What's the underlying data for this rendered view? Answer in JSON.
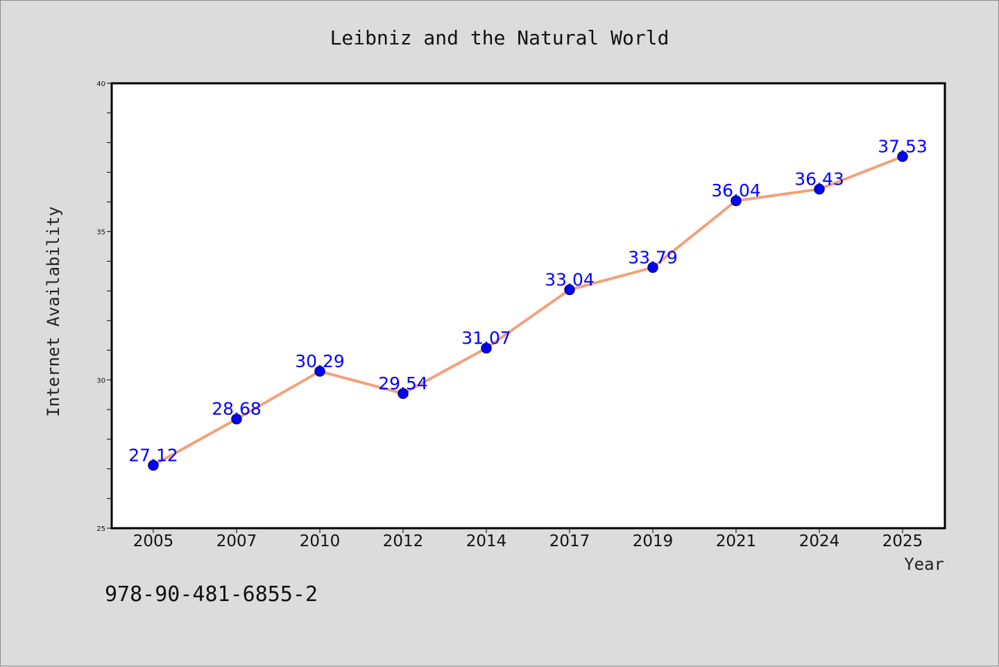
{
  "footer": {
    "isbn": "978-90-481-6855-2"
  },
  "colors": {
    "background": "#dcdcdc",
    "plot_background": "#ffffff",
    "line": "#f4a07a",
    "marker": "#0000ff",
    "marker_edge": "#000080",
    "data_label": "#0000ff"
  },
  "chart_data": {
    "type": "line",
    "title": "Leibniz and the Natural World",
    "xlabel": "Year",
    "ylabel": "Internet Availability",
    "categories": [
      "2005",
      "2007",
      "2010",
      "2012",
      "2014",
      "2017",
      "2019",
      "2021",
      "2024",
      "2025"
    ],
    "series": [
      {
        "values": [
          27.12,
          28.68,
          30.29,
          29.54,
          31.07,
          33.04,
          33.79,
          36.04,
          36.43,
          37.53
        ]
      }
    ],
    "ylim": [
      25,
      40
    ],
    "y_ticks": [
      25,
      30,
      35,
      40
    ],
    "y_minor_step": 1,
    "grid": false,
    "legend": "none",
    "data_labels": true
  }
}
